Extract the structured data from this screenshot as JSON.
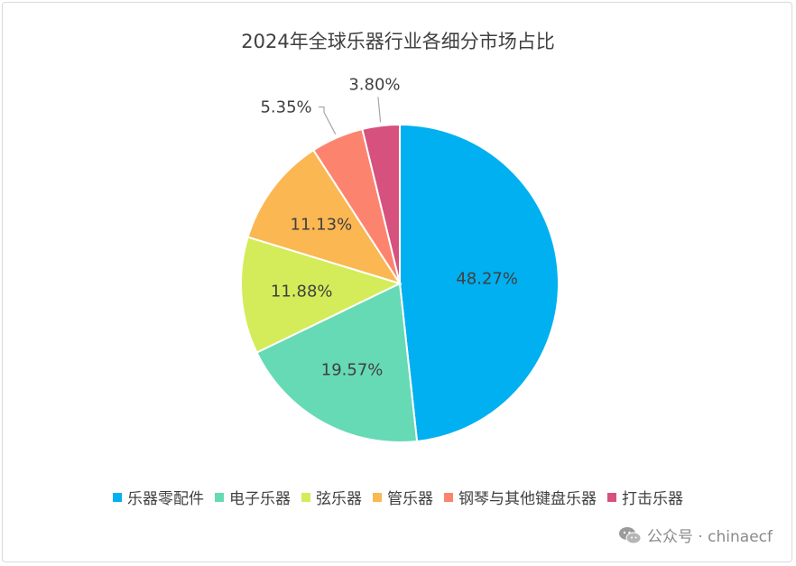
{
  "chart_data": {
    "type": "pie",
    "title": "2024年全球乐器行业各细分市场占比",
    "slices": [
      {
        "label": "乐器零配件",
        "value": 48.27,
        "display": "48.27%",
        "color": "#00b0f0"
      },
      {
        "label": "电子乐器",
        "value": 19.57,
        "display": "19.57%",
        "color": "#66d9b5"
      },
      {
        "label": "弦乐器",
        "value": 11.88,
        "display": "11.88%",
        "color": "#d4ec59"
      },
      {
        "label": "管乐器",
        "value": 11.13,
        "display": "11.13%",
        "color": "#fbb752"
      },
      {
        "label": "钢琴与其他键盘乐器",
        "value": 5.35,
        "display": "5.35%",
        "color": "#fc846f"
      },
      {
        "label": "打击乐器",
        "value": 3.8,
        "display": "3.80%",
        "color": "#d6517e"
      }
    ],
    "legend": "bottom"
  },
  "watermark": {
    "text": "公众号 · chinaecf",
    "icon": "wechat-icon"
  }
}
